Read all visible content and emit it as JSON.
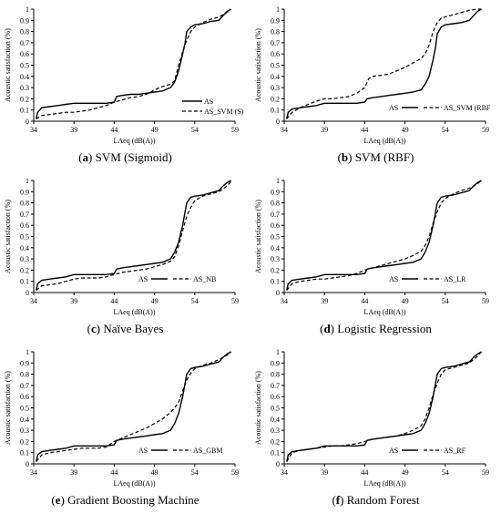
{
  "figure": {
    "panels": [
      {
        "caption_tag": "a",
        "caption_rest": "SVM (Sigmoid)",
        "legend": [
          "AS",
          "AS_SVM (S)"
        ]
      },
      {
        "caption_tag": "b",
        "caption_rest": "SVM (RBF)",
        "legend": [
          "AS",
          "AS_SVM (RBF"
        ]
      },
      {
        "caption_tag": "c",
        "caption_rest": "Naïve Bayes",
        "legend": [
          "AS",
          "AS_NB"
        ]
      },
      {
        "caption_tag": "d",
        "caption_rest": "Logistic Regression",
        "legend": [
          "AS",
          "AS_LR"
        ]
      },
      {
        "caption_tag": "e",
        "caption_rest": "Gradient Boosting Machine",
        "legend": [
          "AS",
          "AS_GBM"
        ]
      },
      {
        "caption_tag": "f",
        "caption_rest": "Random Forest",
        "legend": [
          "AS",
          "AS_RF"
        ]
      }
    ]
  },
  "chart_data": [
    {
      "type": "line",
      "title": "(a) SVM (Sigmoid)",
      "xlabel": "LAeq (dB(A))",
      "ylabel": "Acoustic satisfaction (%)",
      "xticks": [
        34,
        39,
        44,
        49,
        54,
        59
      ],
      "yticks": [
        "0",
        "0.1",
        "0.2",
        "0.3",
        "0.4",
        "0.5",
        "0.6",
        "0.7",
        "0.8",
        "0.9",
        "1"
      ],
      "xlim": [
        34,
        59
      ],
      "ylim": [
        0,
        1
      ],
      "legend_position": "bottom-right",
      "series": [
        {
          "name": "AS",
          "style": "solid",
          "x": [
            34.3,
            34.5,
            35,
            36,
            37,
            38,
            39,
            40,
            41,
            42,
            43,
            44,
            44.3,
            45,
            46,
            47,
            48,
            49,
            50,
            51,
            51.5,
            52,
            52.5,
            52.8,
            53,
            53.5,
            54,
            55,
            56,
            57,
            57.5,
            58,
            58.5
          ],
          "y": [
            0.02,
            0.08,
            0.12,
            0.13,
            0.14,
            0.15,
            0.16,
            0.16,
            0.16,
            0.16,
            0.16,
            0.17,
            0.22,
            0.23,
            0.24,
            0.24,
            0.25,
            0.26,
            0.27,
            0.3,
            0.35,
            0.45,
            0.6,
            0.7,
            0.8,
            0.84,
            0.86,
            0.87,
            0.89,
            0.9,
            0.94,
            0.98,
            1.0
          ]
        },
        {
          "name": "AS_SVM (S)",
          "style": "dashed",
          "x": [
            34.3,
            35,
            36,
            37,
            38,
            39,
            40,
            41,
            42,
            43,
            44,
            45,
            46,
            47,
            48,
            49,
            50,
            51,
            51.5,
            52,
            52.5,
            53,
            53.5,
            54,
            55,
            56,
            57,
            58,
            58.5
          ],
          "y": [
            0.02,
            0.05,
            0.06,
            0.07,
            0.08,
            0.08,
            0.09,
            0.1,
            0.12,
            0.14,
            0.17,
            0.19,
            0.21,
            0.22,
            0.24,
            0.28,
            0.31,
            0.33,
            0.36,
            0.5,
            0.62,
            0.72,
            0.8,
            0.84,
            0.88,
            0.91,
            0.93,
            0.97,
            1.0
          ]
        }
      ]
    },
    {
      "type": "line",
      "title": "(b) SVM (RBF)",
      "xlabel": "LAeq (dB(A))",
      "ylabel": "Acoustic satisfaction (%)",
      "xticks": [
        34,
        39,
        44,
        49,
        54,
        59
      ],
      "yticks": [
        "0",
        "0.1",
        "0.2",
        "0.3",
        "0.4",
        "0.5",
        "0.6",
        "0.7",
        "0.8",
        "0.9",
        "1"
      ],
      "xlim": [
        34,
        59
      ],
      "ylim": [
        0,
        1
      ],
      "legend_position": "bottom-right",
      "series": [
        {
          "name": "AS",
          "style": "solid",
          "x": [
            34.3,
            34.5,
            35,
            36,
            37,
            38,
            39,
            40,
            41,
            42,
            43,
            44,
            44.3,
            45,
            46,
            47,
            48,
            49,
            50,
            51,
            51.5,
            52,
            52.5,
            52.8,
            53,
            53.5,
            54,
            55,
            56,
            57,
            57.5,
            58,
            58.5
          ],
          "y": [
            0.02,
            0.08,
            0.11,
            0.12,
            0.13,
            0.14,
            0.16,
            0.16,
            0.16,
            0.16,
            0.16,
            0.17,
            0.2,
            0.21,
            0.22,
            0.23,
            0.24,
            0.25,
            0.26,
            0.28,
            0.33,
            0.4,
            0.55,
            0.66,
            0.78,
            0.84,
            0.86,
            0.87,
            0.88,
            0.9,
            0.94,
            0.98,
            1.0
          ]
        },
        {
          "name": "AS_SVM (RBF",
          "style": "dashed",
          "x": [
            34.3,
            35,
            36,
            37,
            38,
            39,
            40,
            41,
            42,
            43,
            44,
            44.5,
            45,
            46,
            47,
            48,
            49,
            50,
            51,
            51.5,
            52,
            52.5,
            53,
            53.5,
            54,
            55,
            56,
            57,
            58,
            58.5
          ],
          "y": [
            0.02,
            0.08,
            0.12,
            0.15,
            0.18,
            0.2,
            0.2,
            0.21,
            0.22,
            0.25,
            0.3,
            0.38,
            0.4,
            0.41,
            0.42,
            0.45,
            0.48,
            0.52,
            0.56,
            0.6,
            0.68,
            0.8,
            0.88,
            0.92,
            0.93,
            0.95,
            0.97,
            0.99,
            1.0,
            1.0
          ]
        }
      ]
    },
    {
      "type": "line",
      "title": "(c) Naïve Bayes",
      "xlabel": "LAeq (dB(A))",
      "ylabel": "Acoustic satisfaction (%)",
      "xticks": [
        34,
        39,
        44,
        49,
        54,
        59
      ],
      "yticks": [
        "0",
        "0.1",
        "0.2",
        "0.3",
        "0.4",
        "0.5",
        "0.6",
        "0.7",
        "0.8",
        "0.9",
        "1"
      ],
      "xlim": [
        34,
        59
      ],
      "ylim": [
        0,
        1
      ],
      "legend_position": "bottom-right",
      "series": [
        {
          "name": "AS",
          "style": "solid",
          "x": [
            34.3,
            34.5,
            35,
            36,
            37,
            38,
            39,
            40,
            41,
            42,
            43,
            44,
            44.3,
            45,
            46,
            47,
            48,
            49,
            50,
            51,
            51.5,
            52,
            52.5,
            52.8,
            53,
            53.5,
            54,
            55,
            56,
            57,
            57.5,
            58,
            58.5
          ],
          "y": [
            0.02,
            0.08,
            0.11,
            0.12,
            0.13,
            0.14,
            0.16,
            0.16,
            0.16,
            0.16,
            0.16,
            0.17,
            0.21,
            0.22,
            0.23,
            0.24,
            0.25,
            0.26,
            0.27,
            0.3,
            0.36,
            0.45,
            0.6,
            0.72,
            0.8,
            0.85,
            0.86,
            0.87,
            0.89,
            0.91,
            0.95,
            0.98,
            1.0
          ]
        },
        {
          "name": "AS_NB",
          "style": "dashed",
          "x": [
            34.3,
            35,
            36,
            37,
            38,
            39,
            40,
            41,
            42,
            43,
            44,
            45,
            46,
            47,
            48,
            49,
            50,
            51,
            51.5,
            52,
            52.5,
            53,
            53.5,
            54,
            55,
            56,
            57,
            58,
            58.5
          ],
          "y": [
            0.02,
            0.06,
            0.07,
            0.08,
            0.1,
            0.12,
            0.13,
            0.13,
            0.13,
            0.14,
            0.16,
            0.18,
            0.19,
            0.2,
            0.21,
            0.23,
            0.25,
            0.28,
            0.32,
            0.42,
            0.55,
            0.68,
            0.76,
            0.82,
            0.86,
            0.88,
            0.9,
            0.95,
            0.99
          ]
        }
      ]
    },
    {
      "type": "line",
      "title": "(d) Logistic Regression",
      "xlabel": "LAeq (dB(A))",
      "ylabel": "Acoustic satisfaction (%)",
      "xticks": [
        34,
        39,
        44,
        49,
        54,
        59
      ],
      "yticks": [
        "0",
        "0.1",
        "0.2",
        "0.3",
        "0.4",
        "0.5",
        "0.6",
        "0.7",
        "0.8",
        "0.9",
        "1"
      ],
      "xlim": [
        34,
        59
      ],
      "ylim": [
        0,
        1
      ],
      "legend_position": "bottom-right",
      "series": [
        {
          "name": "AS",
          "style": "solid",
          "x": [
            34.3,
            34.5,
            35,
            36,
            37,
            38,
            39,
            40,
            41,
            42,
            43,
            44,
            44.3,
            45,
            46,
            47,
            48,
            49,
            50,
            51,
            51.5,
            52,
            52.5,
            52.8,
            53,
            53.5,
            54,
            55,
            56,
            57,
            57.5,
            58,
            58.5
          ],
          "y": [
            0.02,
            0.08,
            0.11,
            0.12,
            0.13,
            0.14,
            0.16,
            0.16,
            0.16,
            0.16,
            0.16,
            0.17,
            0.21,
            0.22,
            0.23,
            0.24,
            0.25,
            0.26,
            0.27,
            0.3,
            0.36,
            0.45,
            0.6,
            0.72,
            0.8,
            0.85,
            0.86,
            0.87,
            0.89,
            0.91,
            0.95,
            0.98,
            1.0
          ]
        },
        {
          "name": "AS_LR",
          "style": "dashed",
          "x": [
            34.3,
            35,
            36,
            37,
            38,
            39,
            40,
            41,
            42,
            43,
            44,
            45,
            46,
            47,
            48,
            49,
            50,
            51,
            51.5,
            52,
            52.5,
            53,
            53.5,
            54,
            55,
            56,
            57,
            58,
            58.5
          ],
          "y": [
            0.02,
            0.08,
            0.1,
            0.11,
            0.12,
            0.12,
            0.13,
            0.14,
            0.15,
            0.17,
            0.2,
            0.22,
            0.24,
            0.26,
            0.28,
            0.3,
            0.33,
            0.37,
            0.42,
            0.5,
            0.62,
            0.72,
            0.8,
            0.84,
            0.88,
            0.91,
            0.93,
            0.97,
            1.0
          ]
        }
      ]
    },
    {
      "type": "line",
      "title": "(e) Gradient Boosting Machine",
      "xlabel": "LAeq (dB(A))",
      "ylabel": "Acoustic satisfaction (%)",
      "xticks": [
        34,
        39,
        44,
        49,
        54,
        59
      ],
      "yticks": [
        "0",
        "0.1",
        "0.2",
        "0.3",
        "0.4",
        "0.5",
        "0.6",
        "0.7",
        "0.8",
        "0.9",
        "1"
      ],
      "xlim": [
        34,
        59
      ],
      "ylim": [
        0,
        1
      ],
      "legend_position": "bottom-right",
      "series": [
        {
          "name": "AS",
          "style": "solid",
          "x": [
            34.3,
            34.5,
            35,
            36,
            37,
            38,
            39,
            40,
            41,
            42,
            43,
            44,
            44.3,
            45,
            46,
            47,
            48,
            49,
            50,
            51,
            51.5,
            52,
            52.5,
            52.8,
            53,
            53.5,
            54,
            55,
            56,
            57,
            57.5,
            58,
            58.5
          ],
          "y": [
            0.02,
            0.08,
            0.11,
            0.12,
            0.13,
            0.14,
            0.16,
            0.16,
            0.16,
            0.16,
            0.16,
            0.17,
            0.21,
            0.22,
            0.23,
            0.24,
            0.25,
            0.26,
            0.27,
            0.3,
            0.36,
            0.45,
            0.6,
            0.72,
            0.8,
            0.85,
            0.86,
            0.87,
            0.89,
            0.91,
            0.95,
            0.98,
            1.0
          ]
        },
        {
          "name": "AS_GBM",
          "style": "dashed",
          "x": [
            34.3,
            35,
            36,
            37,
            38,
            39,
            40,
            41,
            42,
            43,
            44,
            45,
            46,
            47,
            48,
            49,
            50,
            51,
            51.5,
            52,
            52.5,
            53,
            53.5,
            54,
            55,
            56,
            57,
            58,
            58.5
          ],
          "y": [
            0.02,
            0.08,
            0.1,
            0.11,
            0.12,
            0.13,
            0.14,
            0.14,
            0.14,
            0.15,
            0.2,
            0.23,
            0.26,
            0.29,
            0.32,
            0.36,
            0.4,
            0.46,
            0.5,
            0.55,
            0.65,
            0.75,
            0.81,
            0.85,
            0.88,
            0.9,
            0.93,
            0.97,
            1.0
          ]
        }
      ]
    },
    {
      "type": "line",
      "title": "(f) Random Forest",
      "xlabel": "LAeq (dB(A))",
      "ylabel": "Acoustic satisfaction (%)",
      "xticks": [
        34,
        39,
        44,
        49,
        54,
        59
      ],
      "yticks": [
        "0",
        "0.1",
        "0.2",
        "0.3",
        "0.4",
        "0.5",
        "0.6",
        "0.7",
        "0.8",
        "0.9",
        "1"
      ],
      "xlim": [
        34,
        59
      ],
      "ylim": [
        0,
        1
      ],
      "legend_position": "bottom-right",
      "series": [
        {
          "name": "AS",
          "style": "solid",
          "x": [
            34.3,
            34.5,
            35,
            36,
            37,
            38,
            39,
            40,
            41,
            42,
            43,
            44,
            44.3,
            45,
            46,
            47,
            48,
            49,
            50,
            51,
            51.5,
            52,
            52.5,
            52.8,
            53,
            53.5,
            54,
            55,
            56,
            57,
            57.5,
            58,
            58.5
          ],
          "y": [
            0.02,
            0.08,
            0.11,
            0.12,
            0.13,
            0.14,
            0.16,
            0.16,
            0.16,
            0.16,
            0.16,
            0.17,
            0.21,
            0.22,
            0.23,
            0.24,
            0.25,
            0.26,
            0.27,
            0.3,
            0.36,
            0.45,
            0.6,
            0.72,
            0.8,
            0.85,
            0.86,
            0.87,
            0.89,
            0.91,
            0.95,
            0.98,
            1.0
          ]
        },
        {
          "name": "AS_RF",
          "style": "dashed",
          "x": [
            34.3,
            35,
            36,
            37,
            38,
            39,
            40,
            41,
            42,
            43,
            44,
            45,
            46,
            47,
            48,
            49,
            50,
            51,
            51.5,
            52,
            52.5,
            53,
            53.5,
            54,
            55,
            56,
            57,
            58,
            58.5
          ],
          "y": [
            0.02,
            0.1,
            0.12,
            0.13,
            0.14,
            0.15,
            0.16,
            0.16,
            0.17,
            0.18,
            0.2,
            0.22,
            0.23,
            0.24,
            0.25,
            0.27,
            0.3,
            0.34,
            0.4,
            0.5,
            0.62,
            0.72,
            0.8,
            0.84,
            0.86,
            0.88,
            0.9,
            0.96,
            1.0
          ]
        }
      ]
    }
  ]
}
